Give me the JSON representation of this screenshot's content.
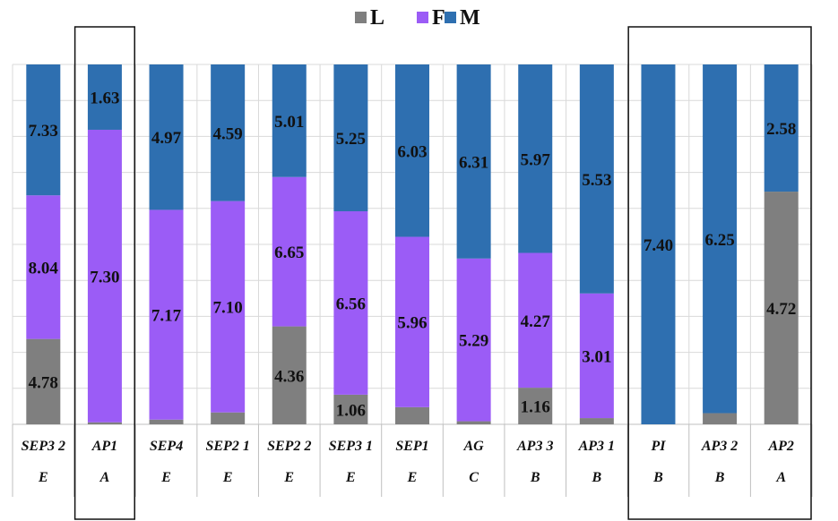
{
  "chart_data": {
    "type": "bar",
    "stacked": true,
    "normalized": true,
    "legend": {
      "position": "top-center",
      "items": [
        {
          "name": "L",
          "color": "#7f7f7f"
        },
        {
          "name": "F",
          "color": "#9b5cf6"
        },
        {
          "name": "M",
          "color": "#2e6fb0"
        }
      ]
    },
    "grid": true,
    "categories": [
      {
        "line1": "SEP3 2",
        "line2": "E"
      },
      {
        "line1": "AP1",
        "line2": "A"
      },
      {
        "line1": "SEP4",
        "line2": "E"
      },
      {
        "line1": "SEP2 1",
        "line2": "E"
      },
      {
        "line1": "SEP2 2",
        "line2": "E"
      },
      {
        "line1": "SEP3 1",
        "line2": "E"
      },
      {
        "line1": "SEP1",
        "line2": "E"
      },
      {
        "line1": "AG",
        "line2": "C"
      },
      {
        "line1": "AP3 3",
        "line2": "B"
      },
      {
        "line1": "AP3 1",
        "line2": "B"
      },
      {
        "line1": "PI",
        "line2": "B"
      },
      {
        "line1": "AP3 2",
        "line2": "B"
      },
      {
        "line1": "AP2",
        "line2": "A"
      }
    ],
    "series": [
      {
        "name": "L",
        "values": [
          4.78,
          0.05,
          0.16,
          0.4,
          4.36,
          1.06,
          0.6,
          0.1,
          1.16,
          0.15,
          0,
          0.2,
          4.72
        ]
      },
      {
        "name": "F",
        "values": [
          8.04,
          7.3,
          7.17,
          7.1,
          6.65,
          6.56,
          5.96,
          5.29,
          4.27,
          3.01,
          0,
          0,
          0
        ]
      },
      {
        "name": "M",
        "values": [
          7.33,
          1.63,
          4.97,
          4.59,
          5.01,
          5.25,
          6.03,
          6.31,
          5.97,
          5.53,
          7.4,
          6.25,
          2.58
        ]
      }
    ],
    "labels": [
      {
        "series": "L",
        "values": [
          "4.78",
          "",
          "",
          "",
          "4.36",
          "1.06",
          "",
          "",
          "1.16",
          "",
          "",
          "",
          "4.72"
        ]
      },
      {
        "series": "F",
        "values": [
          "8.04",
          "7.30",
          "7.17",
          "7.10",
          "6.65",
          "6.56",
          "5.96",
          "5.29",
          "4.27",
          "3.01",
          "",
          "",
          ""
        ]
      },
      {
        "series": "M",
        "values": [
          "7.33",
          "1.63",
          "4.97",
          "4.59",
          "5.01",
          "5.25",
          "6.03",
          "6.31",
          "5.97",
          "5.53",
          "7.40",
          "6.25",
          "2.58"
        ]
      }
    ],
    "highlighted_groups": [
      {
        "categories": [
          "AP1"
        ]
      },
      {
        "categories": [
          "PI",
          "AP3 2",
          "AP2"
        ]
      }
    ]
  }
}
